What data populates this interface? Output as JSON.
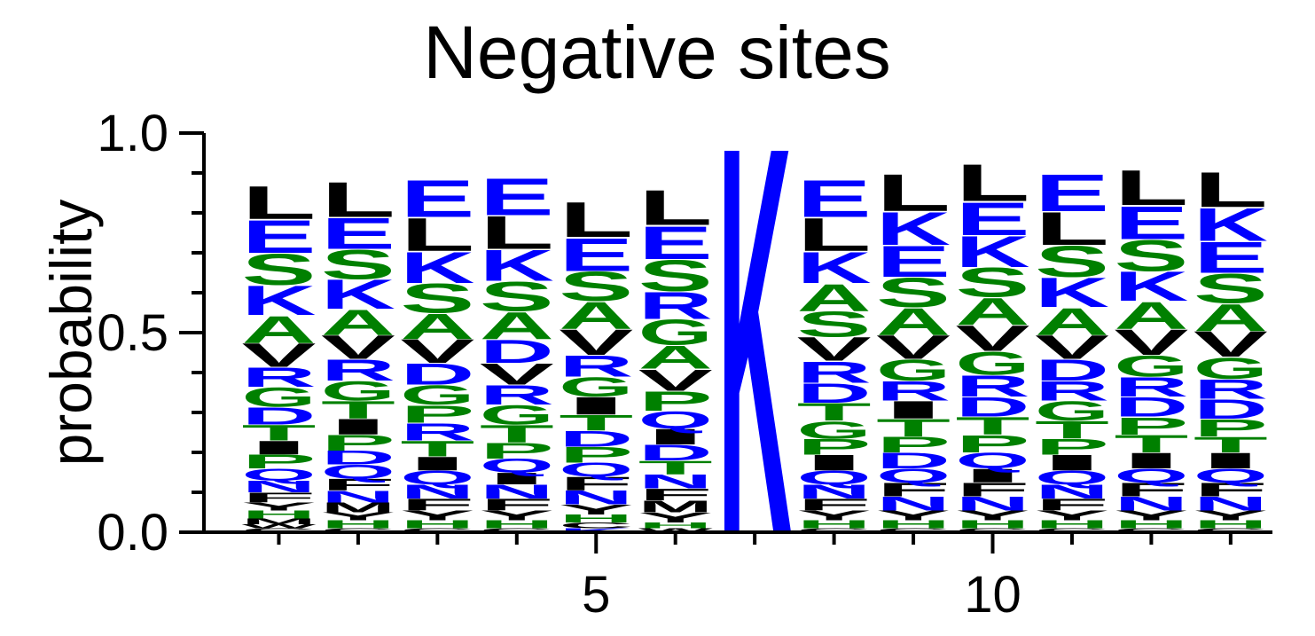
{
  "chart_data": {
    "type": "sequence-logo",
    "title": "Negative sites",
    "xlabel": "",
    "ylabel": "probability",
    "ylim": [
      0,
      1
    ],
    "yticks": [
      "0.0",
      "0.5",
      "1.0"
    ],
    "xticks": [
      5,
      10
    ],
    "xlim": [
      0.5,
      13.5
    ],
    "colors": {
      "hydrophobic": "#000000",
      "charged": "#0000ff",
      "polar": "#008000"
    },
    "letter_colors": {
      "L": "#000000",
      "V": "#000000",
      "I": "#000000",
      "F": "#000000",
      "M": "#000000",
      "Y": "#000000",
      "W": "#000000",
      "C": "#000000",
      "E": "#0000ff",
      "K": "#0000ff",
      "R": "#0000ff",
      "D": "#0000ff",
      "Q": "#0000ff",
      "N": "#0000ff",
      "S": "#008000",
      "A": "#008000",
      "G": "#008000",
      "T": "#008000",
      "P": "#008000",
      "H": "#008000"
    },
    "positions": [
      {
        "position": 1,
        "letters": [
          [
            "L",
            0.085
          ],
          [
            "E",
            0.085
          ],
          [
            "S",
            0.08
          ],
          [
            "K",
            0.075
          ],
          [
            "A",
            0.07
          ],
          [
            "V",
            0.06
          ],
          [
            "R",
            0.05
          ],
          [
            "G",
            0.05
          ],
          [
            "D",
            0.045
          ],
          [
            "T",
            0.04
          ],
          [
            "I",
            0.035
          ],
          [
            "P",
            0.035
          ],
          [
            "Q",
            0.03
          ],
          [
            "N",
            0.03
          ],
          [
            "F",
            0.025
          ],
          [
            "Y",
            0.02
          ],
          [
            "H",
            0.02
          ],
          [
            "M",
            0.015
          ],
          [
            "W",
            0.01
          ],
          [
            "C",
            0.01
          ]
        ]
      },
      {
        "position": 2,
        "letters": [
          [
            "L",
            0.09
          ],
          [
            "E",
            0.08
          ],
          [
            "S",
            0.075
          ],
          [
            "K",
            0.075
          ],
          [
            "A",
            0.065
          ],
          [
            "V",
            0.06
          ],
          [
            "R",
            0.055
          ],
          [
            "G",
            0.05
          ],
          [
            "T",
            0.045
          ],
          [
            "I",
            0.04
          ],
          [
            "P",
            0.04
          ],
          [
            "D",
            0.035
          ],
          [
            "Q",
            0.035
          ],
          [
            "F",
            0.03
          ],
          [
            "N",
            0.03
          ],
          [
            "M",
            0.025
          ],
          [
            "Y",
            0.02
          ],
          [
            "H",
            0.02
          ],
          [
            "C",
            0.01
          ]
        ]
      },
      {
        "position": 3,
        "letters": [
          [
            "E",
            0.095
          ],
          [
            "L",
            0.085
          ],
          [
            "K",
            0.08
          ],
          [
            "S",
            0.075
          ],
          [
            "A",
            0.065
          ],
          [
            "V",
            0.06
          ],
          [
            "D",
            0.055
          ],
          [
            "G",
            0.05
          ],
          [
            "P",
            0.045
          ],
          [
            "R",
            0.045
          ],
          [
            "T",
            0.04
          ],
          [
            "I",
            0.035
          ],
          [
            "Q",
            0.035
          ],
          [
            "N",
            0.035
          ],
          [
            "F",
            0.03
          ],
          [
            "Y",
            0.025
          ],
          [
            "H",
            0.02
          ],
          [
            "C",
            0.01
          ]
        ]
      },
      {
        "position": 4,
        "letters": [
          [
            "E",
            0.095
          ],
          [
            "L",
            0.085
          ],
          [
            "K",
            0.08
          ],
          [
            "S",
            0.075
          ],
          [
            "A",
            0.07
          ],
          [
            "D",
            0.06
          ],
          [
            "V",
            0.055
          ],
          [
            "R",
            0.05
          ],
          [
            "G",
            0.05
          ],
          [
            "T",
            0.045
          ],
          [
            "P",
            0.04
          ],
          [
            "Q",
            0.035
          ],
          [
            "I",
            0.03
          ],
          [
            "N",
            0.035
          ],
          [
            "F",
            0.03
          ],
          [
            "Y",
            0.025
          ],
          [
            "H",
            0.02
          ],
          [
            "C",
            0.01
          ]
        ]
      },
      {
        "position": 5,
        "letters": [
          [
            "L",
            0.09
          ],
          [
            "E",
            0.085
          ],
          [
            "S",
            0.075
          ],
          [
            "A",
            0.07
          ],
          [
            "V",
            0.065
          ],
          [
            "R",
            0.055
          ],
          [
            "G",
            0.05
          ],
          [
            "I",
            0.045
          ],
          [
            "T",
            0.04
          ],
          [
            "D",
            0.04
          ],
          [
            "P",
            0.04
          ],
          [
            "Q",
            0.035
          ],
          [
            "F",
            0.035
          ],
          [
            "N",
            0.035
          ],
          [
            "Y",
            0.025
          ],
          [
            "H",
            0.02
          ],
          [
            "C",
            0.015
          ],
          [
            "K",
            0.01
          ]
        ]
      },
      {
        "position": 6,
        "letters": [
          [
            "L",
            0.09
          ],
          [
            "E",
            0.085
          ],
          [
            "S",
            0.08
          ],
          [
            "R",
            0.07
          ],
          [
            "G",
            0.065
          ],
          [
            "A",
            0.06
          ],
          [
            "V",
            0.055
          ],
          [
            "P",
            0.05
          ],
          [
            "Q",
            0.045
          ],
          [
            "I",
            0.04
          ],
          [
            "D",
            0.04
          ],
          [
            "T",
            0.035
          ],
          [
            "N",
            0.035
          ],
          [
            "F",
            0.03
          ],
          [
            "M",
            0.03
          ],
          [
            "Y",
            0.025
          ],
          [
            "H",
            0.015
          ],
          [
            "W",
            0.01
          ]
        ]
      },
      {
        "position": 7,
        "letters": [
          [
            "K",
            1.0
          ]
        ]
      },
      {
        "position": 8,
        "letters": [
          [
            "E",
            0.095
          ],
          [
            "L",
            0.085
          ],
          [
            "K",
            0.08
          ],
          [
            "A",
            0.07
          ],
          [
            "S",
            0.065
          ],
          [
            "V",
            0.06
          ],
          [
            "R",
            0.055
          ],
          [
            "D",
            0.05
          ],
          [
            "T",
            0.045
          ],
          [
            "G",
            0.045
          ],
          [
            "P",
            0.04
          ],
          [
            "I",
            0.04
          ],
          [
            "Q",
            0.035
          ],
          [
            "N",
            0.035
          ],
          [
            "F",
            0.03
          ],
          [
            "Y",
            0.025
          ],
          [
            "H",
            0.02
          ],
          [
            "C",
            0.01
          ]
        ]
      },
      {
        "position": 9,
        "letters": [
          [
            "L",
            0.095
          ],
          [
            "K",
            0.085
          ],
          [
            "E",
            0.08
          ],
          [
            "S",
            0.075
          ],
          [
            "A",
            0.07
          ],
          [
            "V",
            0.06
          ],
          [
            "G",
            0.055
          ],
          [
            "R",
            0.05
          ],
          [
            "I",
            0.045
          ],
          [
            "T",
            0.045
          ],
          [
            "P",
            0.04
          ],
          [
            "D",
            0.04
          ],
          [
            "Q",
            0.035
          ],
          [
            "F",
            0.035
          ],
          [
            "N",
            0.035
          ],
          [
            "Y",
            0.025
          ],
          [
            "H",
            0.02
          ],
          [
            "C",
            0.01
          ]
        ]
      },
      {
        "position": 10,
        "letters": [
          [
            "L",
            0.095
          ],
          [
            "E",
            0.085
          ],
          [
            "K",
            0.08
          ],
          [
            "S",
            0.075
          ],
          [
            "A",
            0.07
          ],
          [
            "V",
            0.065
          ],
          [
            "G",
            0.06
          ],
          [
            "R",
            0.055
          ],
          [
            "D",
            0.05
          ],
          [
            "T",
            0.045
          ],
          [
            "P",
            0.045
          ],
          [
            "Q",
            0.04
          ],
          [
            "I",
            0.035
          ],
          [
            "F",
            0.035
          ],
          [
            "N",
            0.035
          ],
          [
            "Y",
            0.025
          ],
          [
            "H",
            0.02
          ],
          [
            "C",
            0.01
          ]
        ]
      },
      {
        "position": 11,
        "letters": [
          [
            "E",
            0.095
          ],
          [
            "L",
            0.085
          ],
          [
            "S",
            0.08
          ],
          [
            "K",
            0.075
          ],
          [
            "A",
            0.07
          ],
          [
            "V",
            0.06
          ],
          [
            "D",
            0.055
          ],
          [
            "R",
            0.05
          ],
          [
            "G",
            0.05
          ],
          [
            "T",
            0.045
          ],
          [
            "P",
            0.04
          ],
          [
            "I",
            0.04
          ],
          [
            "Q",
            0.035
          ],
          [
            "N",
            0.035
          ],
          [
            "F",
            0.03
          ],
          [
            "Y",
            0.025
          ],
          [
            "H",
            0.02
          ],
          [
            "C",
            0.01
          ]
        ]
      },
      {
        "position": 12,
        "letters": [
          [
            "L",
            0.09
          ],
          [
            "E",
            0.085
          ],
          [
            "S",
            0.08
          ],
          [
            "K",
            0.075
          ],
          [
            "A",
            0.07
          ],
          [
            "V",
            0.065
          ],
          [
            "G",
            0.055
          ],
          [
            "R",
            0.05
          ],
          [
            "D",
            0.05
          ],
          [
            "P",
            0.045
          ],
          [
            "T",
            0.045
          ],
          [
            "I",
            0.04
          ],
          [
            "Q",
            0.035
          ],
          [
            "F",
            0.035
          ],
          [
            "N",
            0.035
          ],
          [
            "Y",
            0.025
          ],
          [
            "H",
            0.02
          ],
          [
            "C",
            0.01
          ]
        ]
      },
      {
        "position": 13,
        "letters": [
          [
            "L",
            0.09
          ],
          [
            "K",
            0.085
          ],
          [
            "E",
            0.08
          ],
          [
            "S",
            0.075
          ],
          [
            "A",
            0.07
          ],
          [
            "V",
            0.065
          ],
          [
            "G",
            0.055
          ],
          [
            "R",
            0.05
          ],
          [
            "D",
            0.05
          ],
          [
            "P",
            0.045
          ],
          [
            "T",
            0.04
          ],
          [
            "I",
            0.04
          ],
          [
            "Q",
            0.035
          ],
          [
            "F",
            0.035
          ],
          [
            "N",
            0.035
          ],
          [
            "Y",
            0.025
          ],
          [
            "H",
            0.02
          ],
          [
            "C",
            0.01
          ]
        ]
      }
    ]
  }
}
